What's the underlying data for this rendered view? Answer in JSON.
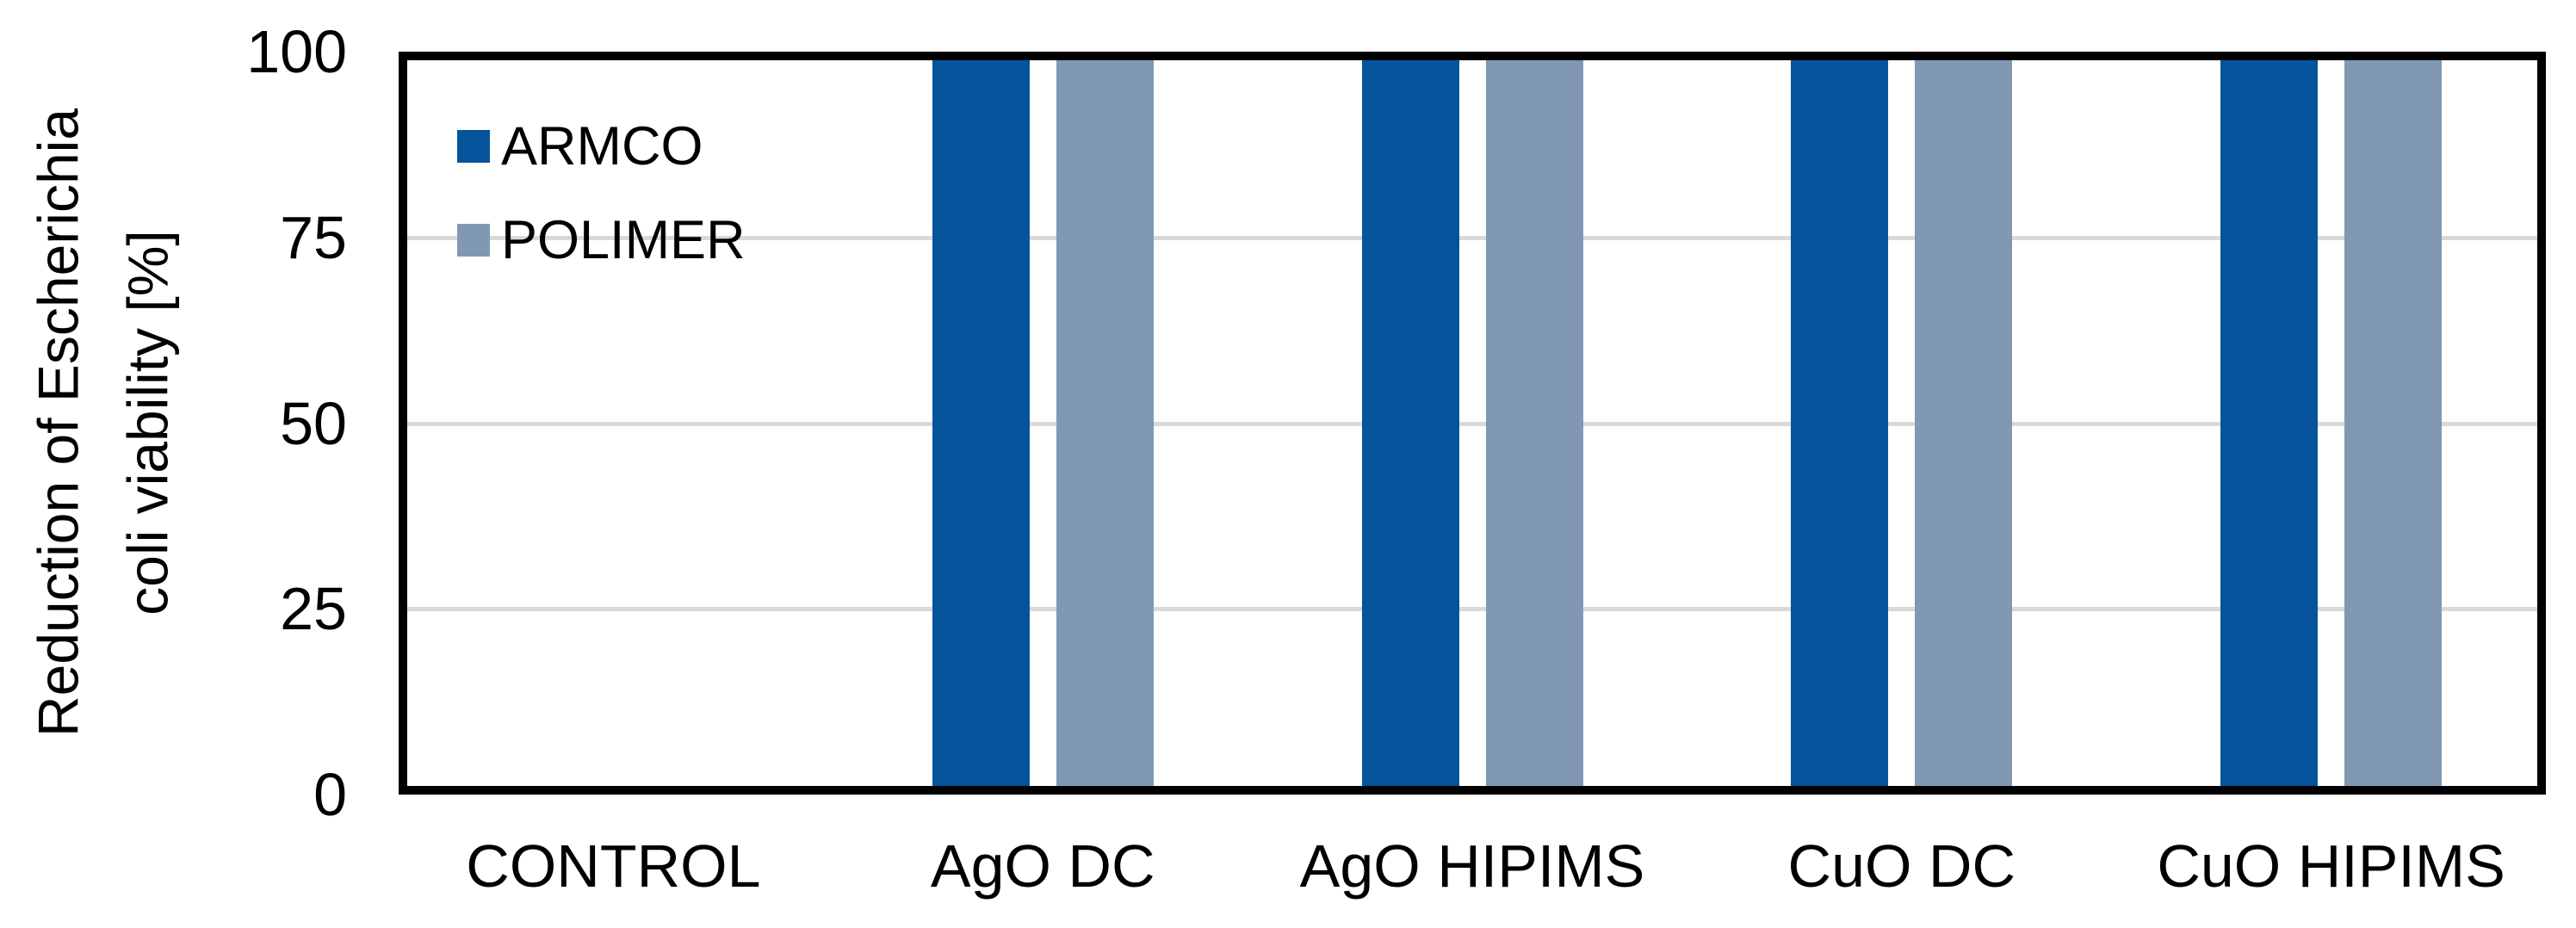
{
  "chart_data": {
    "type": "bar",
    "title": "",
    "ylabel_line1": "Reduction of Escherichia",
    "ylabel_line2": "coli viability [%]",
    "xlabel": "",
    "categories": [
      "CONTROL",
      "AgO DC",
      "AgO HIPIMS",
      "CuO DC",
      "CuO HIPIMS"
    ],
    "series": [
      {
        "name": "ARMCO",
        "color": "#05549B",
        "values": [
          0,
          100,
          100,
          100,
          100
        ]
      },
      {
        "name": "POLIMER",
        "color": "#8098B4",
        "values": [
          0,
          100,
          100,
          100,
          100
        ]
      }
    ],
    "yticks": [
      100,
      75,
      50,
      25,
      0
    ],
    "ylim": [
      0,
      100
    ],
    "grid": "horizontal",
    "gridline_color": "#D9D9D9",
    "axis_color": "#000000",
    "background_color": "#FFFFFF",
    "legend_position": "top-left-inside"
  }
}
